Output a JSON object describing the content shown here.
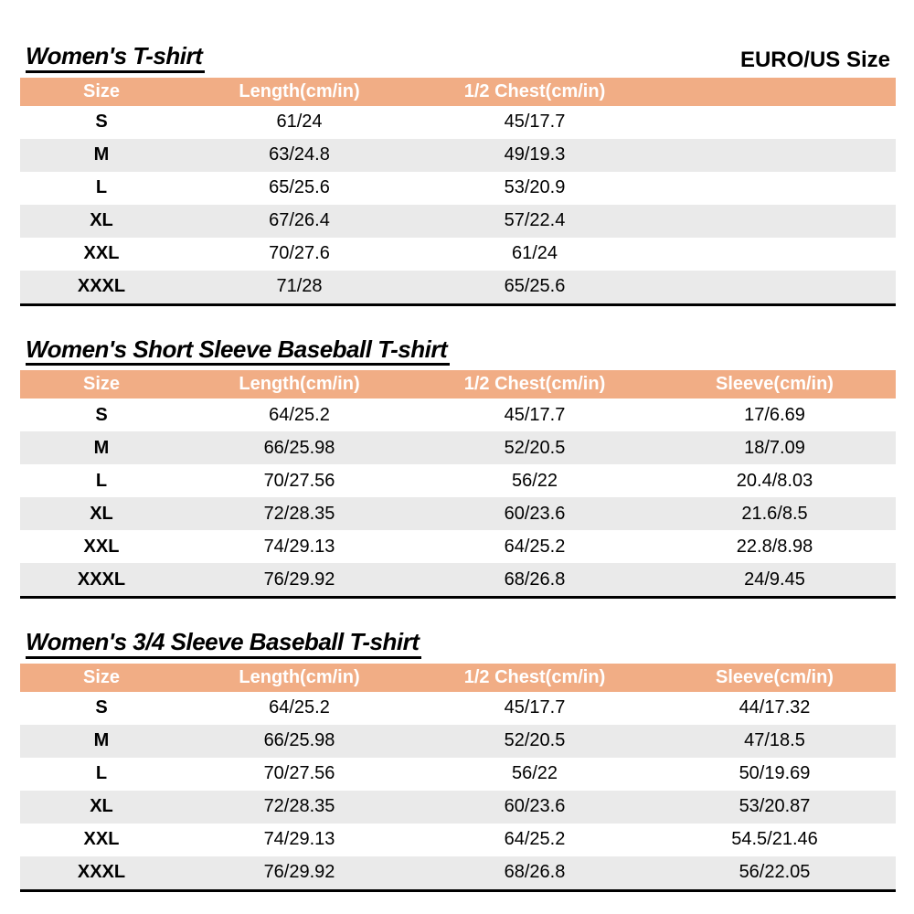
{
  "page": {
    "size_standard_label": "EURO/US Size"
  },
  "colors": {
    "header_bg": "#f1ad85",
    "header_text": "#ffffff",
    "row_alt_bg": "#eaeaea",
    "table_border": "#000000"
  },
  "tables": [
    {
      "title": "Women's T-shirt",
      "columns": [
        "Size",
        "Length(cm/in)",
        "1/2 Chest(cm/in)",
        ""
      ],
      "rows": [
        [
          "S",
          "61/24",
          "45/17.7",
          ""
        ],
        [
          "M",
          "63/24.8",
          "49/19.3",
          ""
        ],
        [
          "L",
          "65/25.6",
          "53/20.9",
          ""
        ],
        [
          "XL",
          "67/26.4",
          "57/22.4",
          ""
        ],
        [
          "XXL",
          "70/27.6",
          "61/24",
          ""
        ],
        [
          "XXXL",
          "71/28",
          "65/25.6",
          ""
        ]
      ]
    },
    {
      "title": "Women's Short Sleeve Baseball T-shirt",
      "columns": [
        "Size",
        "Length(cm/in)",
        "1/2 Chest(cm/in)",
        "Sleeve(cm/in)"
      ],
      "rows": [
        [
          "S",
          "64/25.2",
          "45/17.7",
          "17/6.69"
        ],
        [
          "M",
          "66/25.98",
          "52/20.5",
          "18/7.09"
        ],
        [
          "L",
          "70/27.56",
          "56/22",
          "20.4/8.03"
        ],
        [
          "XL",
          "72/28.35",
          "60/23.6",
          "21.6/8.5"
        ],
        [
          "XXL",
          "74/29.13",
          "64/25.2",
          "22.8/8.98"
        ],
        [
          "XXXL",
          "76/29.92",
          "68/26.8",
          "24/9.45"
        ]
      ]
    },
    {
      "title": "Women's 3/4 Sleeve Baseball T-shirt",
      "columns": [
        "Size",
        "Length(cm/in)",
        "1/2 Chest(cm/in)",
        "Sleeve(cm/in)"
      ],
      "rows": [
        [
          "S",
          "64/25.2",
          "45/17.7",
          "44/17.32"
        ],
        [
          "M",
          "66/25.98",
          "52/20.5",
          "47/18.5"
        ],
        [
          "L",
          "70/27.56",
          "56/22",
          "50/19.69"
        ],
        [
          "XL",
          "72/28.35",
          "60/23.6",
          "53/20.87"
        ],
        [
          "XXL",
          "74/29.13",
          "64/25.2",
          "54.5/21.46"
        ],
        [
          "XXXL",
          "76/29.92",
          "68/26.8",
          "56/22.05"
        ]
      ]
    }
  ]
}
